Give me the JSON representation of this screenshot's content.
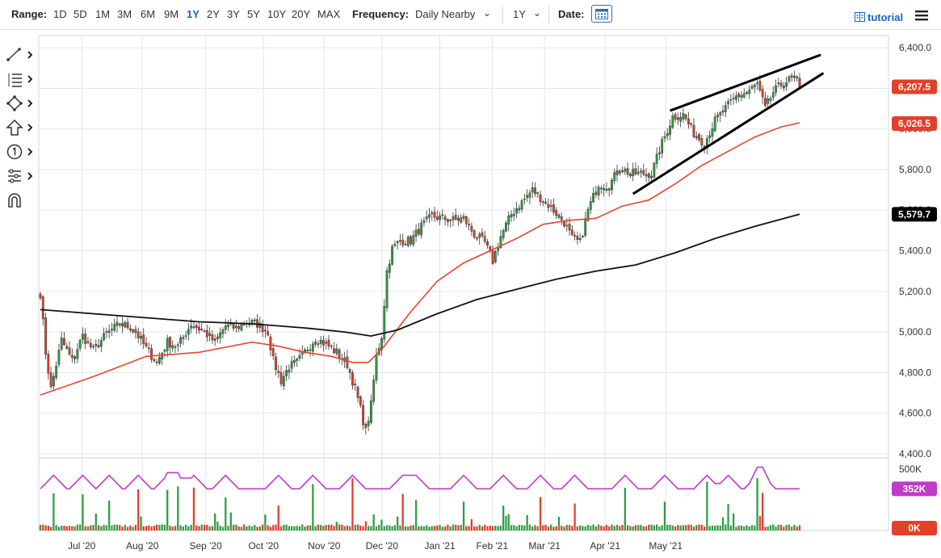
{
  "toolbar": {
    "range_label": "Range:",
    "ranges": [
      "1D",
      "5D",
      "1M",
      "3M",
      "6M",
      "9M",
      "1Y",
      "2Y",
      "3Y",
      "5Y",
      "10Y",
      "20Y",
      "MAX"
    ],
    "active_range": "1Y",
    "frequency_label": "Frequency:",
    "frequency_value": "Daily Nearby",
    "period_value": "1Y",
    "date_label": "Date:",
    "tutorial_label": "tutorial"
  },
  "left_tools": [
    {
      "icon": "line-tool-icon"
    },
    {
      "icon": "fibonacci-tool-icon"
    },
    {
      "icon": "shapes-tool-icon"
    },
    {
      "icon": "arrow-up-tool-icon"
    },
    {
      "icon": "marker-number-icon"
    },
    {
      "icon": "measure-tool-icon"
    },
    {
      "icon": "magnet-icon"
    }
  ],
  "colors": {
    "up_candle": "#2e9e44",
    "down_candle": "#e2402a",
    "ma_short": "#e8452c",
    "ma_long": "#111111",
    "volume_avg": "#c13ac8",
    "grid": "#e6e6e6",
    "accent": "#1565c0"
  },
  "chart_data": {
    "type": "candlestick",
    "x_ticks": [
      "Jul '20",
      "Aug '20",
      "Sep '20",
      "Oct '20",
      "Nov '20",
      "Dec '20",
      "Jan '21",
      "Feb '21",
      "Mar '21",
      "Apr '21",
      "May '21"
    ],
    "y_ticks": [
      "6,400.0",
      "6,200.0",
      "6,000.0",
      "5,800.0",
      "5,600.0",
      "5,400.0",
      "5,200.0",
      "5,000.0",
      "4,800.0",
      "4,600.0",
      "4,400.0"
    ],
    "ylim": [
      4380,
      6460
    ],
    "price_labels": [
      {
        "text": "6,207.5",
        "value": 6207.5,
        "color": "#e2402a"
      },
      {
        "text": "6,026.5",
        "value": 6026.5,
        "color": "#e2402a"
      },
      {
        "text": "5,579.7",
        "value": 5579.7,
        "color": "#000000"
      }
    ],
    "close_path": [
      [
        0,
        5190
      ],
      [
        2,
        4900
      ],
      [
        4,
        4720
      ],
      [
        8,
        4960
      ],
      [
        12,
        4860
      ],
      [
        16,
        4980
      ],
      [
        20,
        4910
      ],
      [
        25,
        4990
      ],
      [
        30,
        5040
      ],
      [
        35,
        5020
      ],
      [
        40,
        4920
      ],
      [
        44,
        4850
      ],
      [
        48,
        4950
      ],
      [
        52,
        4930
      ],
      [
        57,
        5040
      ],
      [
        62,
        5000
      ],
      [
        66,
        4950
      ],
      [
        70,
        5030
      ],
      [
        74,
        5020
      ],
      [
        78,
        5050
      ],
      [
        82,
        5040
      ],
      [
        86,
        5000
      ],
      [
        88,
        4860
      ],
      [
        91,
        4760
      ],
      [
        94,
        4830
      ],
      [
        97,
        4850
      ],
      [
        100,
        4900
      ],
      [
        104,
        4970
      ],
      [
        108,
        4940
      ],
      [
        112,
        4900
      ],
      [
        116,
        4840
      ],
      [
        119,
        4720
      ],
      [
        121,
        4620
      ],
      [
        123,
        4510
      ],
      [
        125,
        4640
      ],
      [
        127,
        4880
      ],
      [
        129,
        4980
      ],
      [
        131,
        5300
      ],
      [
        133,
        5410
      ],
      [
        136,
        5450
      ],
      [
        140,
        5450
      ],
      [
        144,
        5520
      ],
      [
        148,
        5570
      ],
      [
        152,
        5560
      ],
      [
        156,
        5550
      ],
      [
        160,
        5560
      ],
      [
        164,
        5480
      ],
      [
        168,
        5440
      ],
      [
        171,
        5350
      ],
      [
        174,
        5470
      ],
      [
        178,
        5580
      ],
      [
        182,
        5640
      ],
      [
        186,
        5700
      ],
      [
        190,
        5650
      ],
      [
        194,
        5600
      ],
      [
        198,
        5540
      ],
      [
        201,
        5460
      ],
      [
        204,
        5440
      ],
      [
        207,
        5600
      ],
      [
        211,
        5730
      ],
      [
        215,
        5720
      ],
      [
        219,
        5810
      ],
      [
        223,
        5780
      ],
      [
        227,
        5780
      ],
      [
        231,
        5780
      ],
      [
        235,
        5930
      ],
      [
        239,
        6060
      ],
      [
        243,
        6070
      ],
      [
        247,
        5980
      ],
      [
        251,
        5930
      ],
      [
        255,
        6040
      ],
      [
        259,
        6100
      ],
      [
        263,
        6160
      ],
      [
        267,
        6180
      ],
      [
        271,
        6220
      ],
      [
        274,
        6100
      ],
      [
        277,
        6180
      ],
      [
        281,
        6230
      ],
      [
        285,
        6250
      ],
      [
        287,
        6207.5
      ]
    ],
    "ma_short": [
      [
        0,
        4690
      ],
      [
        20,
        4780
      ],
      [
        40,
        4880
      ],
      [
        60,
        4900
      ],
      [
        80,
        4950
      ],
      [
        90,
        4930
      ],
      [
        100,
        4900
      ],
      [
        110,
        4880
      ],
      [
        118,
        4850
      ],
      [
        124,
        4850
      ],
      [
        130,
        4930
      ],
      [
        140,
        5100
      ],
      [
        150,
        5250
      ],
      [
        160,
        5340
      ],
      [
        170,
        5400
      ],
      [
        180,
        5460
      ],
      [
        190,
        5530
      ],
      [
        200,
        5550
      ],
      [
        210,
        5560
      ],
      [
        220,
        5620
      ],
      [
        230,
        5650
      ],
      [
        240,
        5730
      ],
      [
        250,
        5820
      ],
      [
        260,
        5890
      ],
      [
        270,
        5960
      ],
      [
        280,
        6010
      ],
      [
        287,
        6030
      ]
    ],
    "ma_long": [
      [
        0,
        5110
      ],
      [
        20,
        5090
      ],
      [
        40,
        5070
      ],
      [
        60,
        5050
      ],
      [
        80,
        5040
      ],
      [
        100,
        5020
      ],
      [
        115,
        5000
      ],
      [
        125,
        4980
      ],
      [
        135,
        5010
      ],
      [
        150,
        5090
      ],
      [
        165,
        5160
      ],
      [
        180,
        5210
      ],
      [
        195,
        5260
      ],
      [
        210,
        5300
      ],
      [
        225,
        5330
      ],
      [
        240,
        5390
      ],
      [
        255,
        5460
      ],
      [
        270,
        5520
      ],
      [
        287,
        5580
      ]
    ],
    "volume": {
      "ticks": [
        "500K",
        "0K"
      ],
      "current_label": "352K",
      "ylim": [
        0,
        520000
      ],
      "spike_days": [
        5,
        16,
        26,
        37,
        48,
        52,
        58,
        70,
        90,
        103,
        118,
        137,
        142,
        160,
        175,
        189,
        202,
        221,
        236,
        252,
        260,
        271,
        273
      ],
      "baseline": 30000,
      "average_base": 340000
    },
    "wedge_upper": [
      [
        238,
        6090
      ],
      [
        295,
        6365
      ]
    ],
    "wedge_lower": [
      [
        224,
        5680
      ],
      [
        296,
        6275
      ]
    ]
  }
}
